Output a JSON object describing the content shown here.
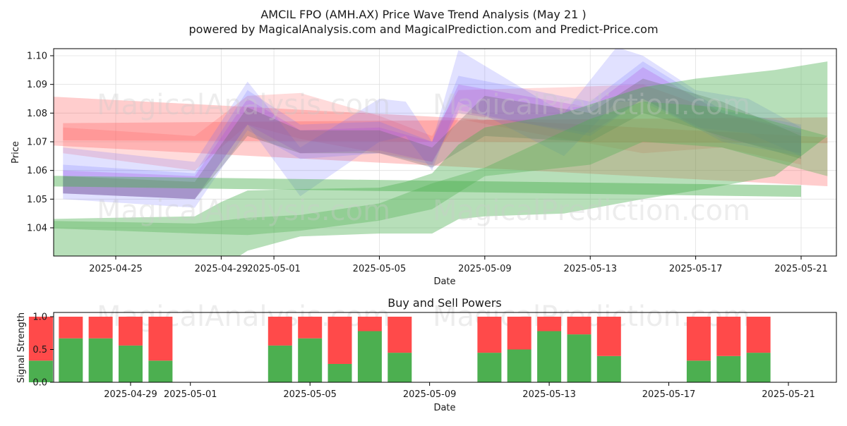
{
  "figure": {
    "title_line1": "AMCIL FPO (AMH.AX) Price Wave Trend Analysis (May 21 )",
    "title_line2": "powered by MagicalAnalysis.com and MagicalPrediction.com and Predict-Price.com",
    "watermarks": [
      "MagicalAnalysis.com",
      "MagicalPrediction.com"
    ]
  },
  "chart_data": [
    {
      "type": "area",
      "xlabel": "Date",
      "ylabel": "Price",
      "x_start": "2025-04-22",
      "x_end": "2025-05-22",
      "ylim": [
        1.03,
        1.1025
      ],
      "xticks": [
        "2025-04-25",
        "2025-04-29",
        "2025-05-01",
        "2025-05-05",
        "2025-05-09",
        "2025-05-13",
        "2025-05-17",
        "2025-05-21"
      ],
      "yticks": [
        1.04,
        1.05,
        1.06,
        1.07,
        1.08,
        1.09,
        1.1
      ],
      "grid": true,
      "colors": {
        "red": "#ff5a5a",
        "blue": "#6a6aff",
        "green": "#4caf50",
        "purple": "#b04ae0",
        "gray": "#666666"
      },
      "bands": [
        {
          "color": "red",
          "opacity": 0.3,
          "x": [
            "2025-04-22",
            "2025-05-22"
          ],
          "upper": [
            1.086,
            1.0715
          ],
          "lower": [
            1.069,
            1.0545
          ]
        },
        {
          "color": "red",
          "opacity": 0.3,
          "x": [
            "2025-04-23",
            "2025-05-22"
          ],
          "upper": [
            1.0765,
            1.0785
          ],
          "lower": [
            1.0705,
            1.0695
          ]
        },
        {
          "color": "red",
          "opacity": 0.22,
          "x": [
            "2025-04-23",
            "2025-04-28",
            "2025-04-30",
            "2025-05-02",
            "2025-05-05",
            "2025-05-07",
            "2025-05-08",
            "2025-05-12",
            "2025-05-15",
            "2025-05-18",
            "2025-05-21"
          ],
          "upper": [
            1.075,
            1.072,
            1.086,
            1.087,
            1.079,
            1.072,
            1.088,
            1.089,
            1.09,
            1.08,
            1.073
          ],
          "lower": [
            1.066,
            1.06,
            1.076,
            1.071,
            1.066,
            1.063,
            1.078,
            1.071,
            1.066,
            1.068,
            1.062
          ]
        },
        {
          "color": "blue",
          "opacity": 0.2,
          "x": [
            "2025-04-23",
            "2025-04-28",
            "2025-04-30",
            "2025-05-02",
            "2025-05-05",
            "2025-05-06",
            "2025-05-07",
            "2025-05-08",
            "2025-05-12",
            "2025-05-14",
            "2025-05-15",
            "2025-05-17",
            "2025-05-19",
            "2025-05-21"
          ],
          "upper": [
            1.068,
            1.063,
            1.091,
            1.068,
            1.085,
            1.084,
            1.07,
            1.102,
            1.08,
            1.103,
            1.1,
            1.088,
            1.085,
            1.075
          ],
          "lower": [
            1.052,
            1.05,
            1.076,
            1.051,
            1.07,
            1.072,
            1.06,
            1.084,
            1.065,
            1.084,
            1.084,
            1.075,
            1.073,
            1.065
          ]
        },
        {
          "color": "blue",
          "opacity": 0.2,
          "x": [
            "2025-04-23",
            "2025-04-28",
            "2025-04-30",
            "2025-05-02",
            "2025-05-05",
            "2025-05-07",
            "2025-05-08",
            "2025-05-13",
            "2025-05-15",
            "2025-05-18",
            "2025-05-21"
          ],
          "upper": [
            1.062,
            1.059,
            1.088,
            1.076,
            1.077,
            1.07,
            1.093,
            1.084,
            1.098,
            1.081,
            1.076
          ],
          "lower": [
            1.05,
            1.047,
            1.074,
            1.064,
            1.066,
            1.062,
            1.081,
            1.072,
            1.085,
            1.07,
            1.065
          ]
        },
        {
          "color": "purple",
          "opacity": 0.25,
          "x": [
            "2025-04-23",
            "2025-04-28",
            "2025-04-30",
            "2025-05-02",
            "2025-05-05",
            "2025-05-07",
            "2025-05-08",
            "2025-05-13",
            "2025-05-15",
            "2025-05-18",
            "2025-05-21"
          ],
          "upper": [
            1.06,
            1.058,
            1.085,
            1.074,
            1.075,
            1.07,
            1.09,
            1.082,
            1.096,
            1.08,
            1.074
          ],
          "lower": [
            1.052,
            1.05,
            1.076,
            1.066,
            1.067,
            1.063,
            1.08,
            1.073,
            1.085,
            1.071,
            1.066
          ]
        },
        {
          "color": "gray",
          "opacity": 0.3,
          "x": [
            "2025-04-23",
            "2025-04-28",
            "2025-04-30",
            "2025-05-02",
            "2025-05-05",
            "2025-05-07",
            "2025-05-09",
            "2025-05-13",
            "2025-05-15",
            "2025-05-18",
            "2025-05-21"
          ],
          "upper": [
            1.058,
            1.056,
            1.082,
            1.074,
            1.074,
            1.068,
            1.086,
            1.08,
            1.092,
            1.084,
            1.072
          ],
          "lower": [
            1.052,
            1.05,
            1.072,
            1.066,
            1.066,
            1.061,
            1.072,
            1.07,
            1.08,
            1.072,
            1.064
          ]
        },
        {
          "color": "green",
          "opacity": 0.45,
          "x": [
            "2025-04-22",
            "2025-05-21"
          ],
          "upper": [
            1.0582,
            1.0548
          ],
          "lower": [
            1.0545,
            1.0508
          ]
        },
        {
          "color": "green",
          "opacity": 0.4,
          "x": [
            "2025-04-22",
            "2025-04-28",
            "2025-04-29",
            "2025-04-30",
            "2025-05-02",
            "2025-05-05",
            "2025-05-06",
            "2025-05-07",
            "2025-05-08",
            "2025-05-09",
            "2025-05-12",
            "2025-05-15",
            "2025-05-17",
            "2025-05-20",
            "2025-05-22"
          ],
          "upper": [
            1.043,
            1.044,
            1.049,
            1.053,
            1.0535,
            1.054,
            1.056,
            1.059,
            1.069,
            1.075,
            1.08,
            1.089,
            1.092,
            1.095,
            1.098
          ],
          "lower": [
            1.023,
            1.02,
            1.026,
            1.032,
            1.037,
            1.038,
            1.038,
            1.038,
            1.043,
            1.044,
            1.045,
            1.05,
            1.053,
            1.058,
            1.072
          ]
        },
        {
          "color": "green",
          "opacity": 0.35,
          "x": [
            "2025-04-22",
            "2025-04-28",
            "2025-04-30",
            "2025-05-02",
            "2025-05-05",
            "2025-05-07",
            "2025-05-09",
            "2025-05-13",
            "2025-05-15",
            "2025-05-18",
            "2025-05-22"
          ],
          "upper": [
            1.0425,
            1.0415,
            1.0435,
            1.0445,
            1.0485,
            1.0555,
            1.061,
            1.078,
            1.084,
            1.082,
            1.072
          ],
          "lower": [
            1.04,
            1.038,
            1.0375,
            1.039,
            1.0425,
            1.0465,
            1.058,
            1.062,
            1.07,
            1.068,
            1.058
          ]
        }
      ]
    },
    {
      "type": "bar",
      "title": "Buy and Sell Powers",
      "xlabel": "Date",
      "ylabel": "Signal Strength",
      "x_start": "2025-04-25",
      "x_end": "2025-05-22",
      "ylim": [
        0,
        1.05
      ],
      "xticks": [
        "2025-04-29",
        "2025-05-01",
        "2025-05-05",
        "2025-05-09",
        "2025-05-13",
        "2025-05-17",
        "2025-05-21"
      ],
      "yticks": [
        "0.0",
        "0.5",
        "1.0"
      ],
      "grid": false,
      "colors": {
        "buy": "#4caf50",
        "sell": "#ff4a4a"
      },
      "categories": [
        "2025-04-26",
        "2025-04-27",
        "2025-04-28",
        "2025-04-29",
        "2025-04-30",
        "2025-05-04",
        "2025-05-05",
        "2025-05-06",
        "2025-05-07",
        "2025-05-08",
        "2025-05-11",
        "2025-05-12",
        "2025-05-13",
        "2025-05-14",
        "2025-05-15",
        "2025-05-18",
        "2025-05-19",
        "2025-05-20"
      ],
      "series": [
        {
          "values": [
            0.33,
            0.67,
            0.67,
            0.56,
            0.33,
            0.56,
            0.67,
            0.28,
            0.78,
            0.45,
            0.45,
            0.5,
            0.78,
            0.73,
            0.4,
            0.33,
            0.4,
            0.45
          ]
        },
        {
          "values": [
            0.67,
            0.33,
            0.33,
            0.44,
            0.67,
            0.44,
            0.33,
            0.72,
            0.22,
            0.55,
            0.55,
            0.5,
            0.22,
            0.27,
            0.6,
            0.67,
            0.6,
            0.55
          ]
        }
      ]
    }
  ]
}
